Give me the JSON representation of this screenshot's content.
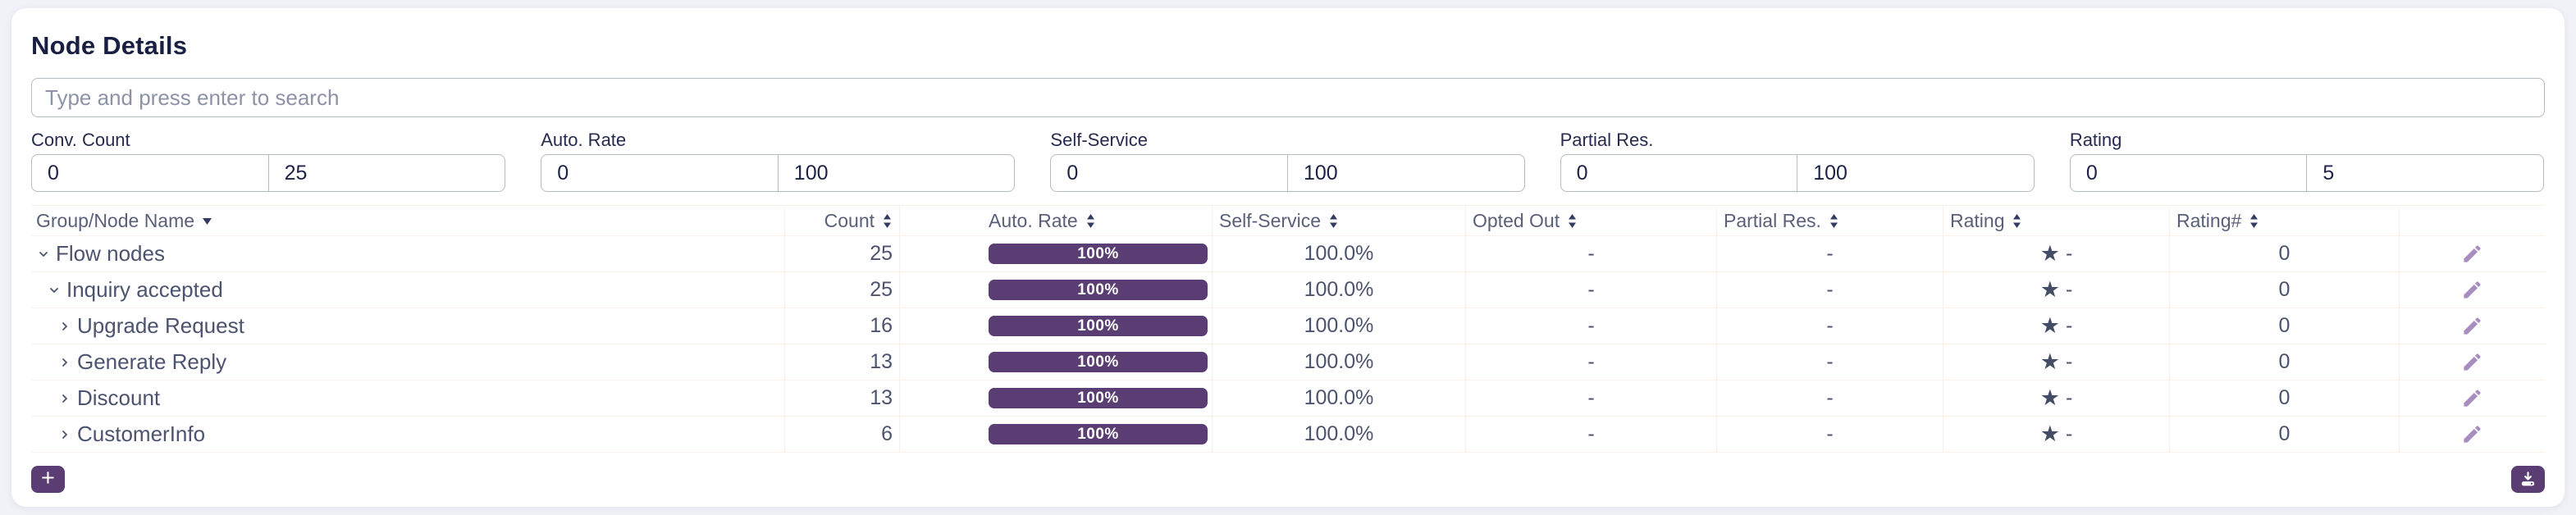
{
  "panel": {
    "title": "Node Details"
  },
  "search": {
    "placeholder": "Type and press enter to search"
  },
  "filters": [
    {
      "label": "Conv. Count",
      "min": "0",
      "max": "25"
    },
    {
      "label": "Auto. Rate",
      "min": "0",
      "max": "100"
    },
    {
      "label": "Self-Service",
      "min": "0",
      "max": "100"
    },
    {
      "label": "Partial Res.",
      "min": "0",
      "max": "100"
    },
    {
      "label": "Rating",
      "min": "0",
      "max": "5"
    }
  ],
  "table": {
    "columns": [
      {
        "label": "Group/Node Name",
        "sort": "desc"
      },
      {
        "label": "Count",
        "sort": "both"
      },
      {
        "label": "Auto. Rate",
        "sort": "both"
      },
      {
        "label": "Self-Service",
        "sort": "both"
      },
      {
        "label": "Opted Out",
        "sort": "both"
      },
      {
        "label": "Partial Res.",
        "sort": "both"
      },
      {
        "label": "Rating",
        "sort": "both"
      },
      {
        "label": "Rating#",
        "sort": "both"
      },
      {
        "label": "",
        "sort": "none"
      }
    ],
    "rows": [
      {
        "name": "Flow nodes",
        "level": 0,
        "expanded": true,
        "count": "25",
        "auto_rate_pct": 100,
        "auto_rate_label": "100%",
        "self_service": "100.0%",
        "opted_out": "-",
        "partial_res": "-",
        "rating": "-",
        "rating_count": "0"
      },
      {
        "name": "Inquiry accepted",
        "level": 1,
        "expanded": true,
        "count": "25",
        "auto_rate_pct": 100,
        "auto_rate_label": "100%",
        "self_service": "100.0%",
        "opted_out": "-",
        "partial_res": "-",
        "rating": "-",
        "rating_count": "0"
      },
      {
        "name": "Upgrade Request",
        "level": 2,
        "expanded": false,
        "count": "16",
        "auto_rate_pct": 100,
        "auto_rate_label": "100%",
        "self_service": "100.0%",
        "opted_out": "-",
        "partial_res": "-",
        "rating": "-",
        "rating_count": "0"
      },
      {
        "name": "Generate Reply",
        "level": 2,
        "expanded": false,
        "count": "13",
        "auto_rate_pct": 100,
        "auto_rate_label": "100%",
        "self_service": "100.0%",
        "opted_out": "-",
        "partial_res": "-",
        "rating": "-",
        "rating_count": "0"
      },
      {
        "name": "Discount",
        "level": 2,
        "expanded": false,
        "count": "13",
        "auto_rate_pct": 100,
        "auto_rate_label": "100%",
        "self_service": "100.0%",
        "opted_out": "-",
        "partial_res": "-",
        "rating": "-",
        "rating_count": "0"
      },
      {
        "name": "CustomerInfo",
        "level": 2,
        "expanded": false,
        "count": "6",
        "auto_rate_pct": 100,
        "auto_rate_label": "100%",
        "self_service": "100.0%",
        "opted_out": "-",
        "partial_res": "-",
        "rating": "-",
        "rating_count": "0"
      }
    ]
  },
  "footer": {
    "add_label": "+"
  },
  "colors": {
    "accent_purple": "#593d73",
    "pencil": "#a98dbf",
    "divider": "#f9f1e7",
    "title_navy": "#191f43",
    "text_slate": "#4c536f"
  }
}
